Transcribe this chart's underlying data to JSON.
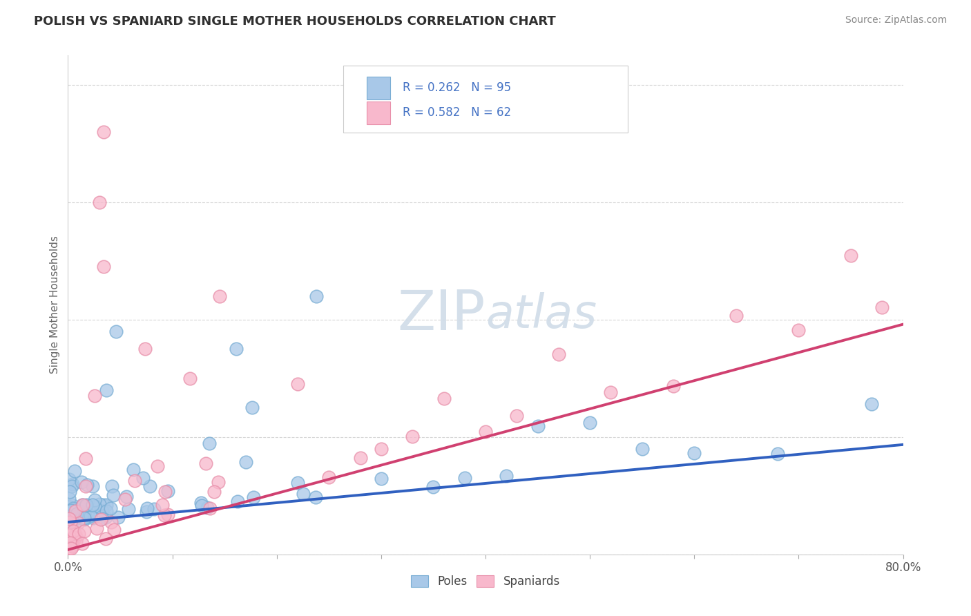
{
  "title": "POLISH VS SPANIARD SINGLE MOTHER HOUSEHOLDS CORRELATION CHART",
  "source": "Source: ZipAtlas.com",
  "ylabel": "Single Mother Households",
  "xlim": [
    0.0,
    0.8
  ],
  "ylim": [
    0.0,
    0.85
  ],
  "legend_r_poles": "R = 0.262",
  "legend_n_poles": "N = 95",
  "legend_r_spaniards": "R = 0.582",
  "legend_n_spaniards": "N = 62",
  "poles_marker_color": "#a8c8e8",
  "poles_edge_color": "#7aaed4",
  "spaniards_marker_color": "#f8b8cc",
  "spaniards_edge_color": "#e890aa",
  "poles_line_color": "#3060c0",
  "spaniards_line_color": "#d04070",
  "background_color": "#ffffff",
  "grid_color": "#cccccc",
  "ytick_color": "#4472c4",
  "watermark_color": "#d0dce8",
  "poles_trend_slope": 0.165,
  "poles_trend_intercept": 0.055,
  "spaniards_trend_slope": 0.48,
  "spaniards_trend_intercept": 0.008
}
